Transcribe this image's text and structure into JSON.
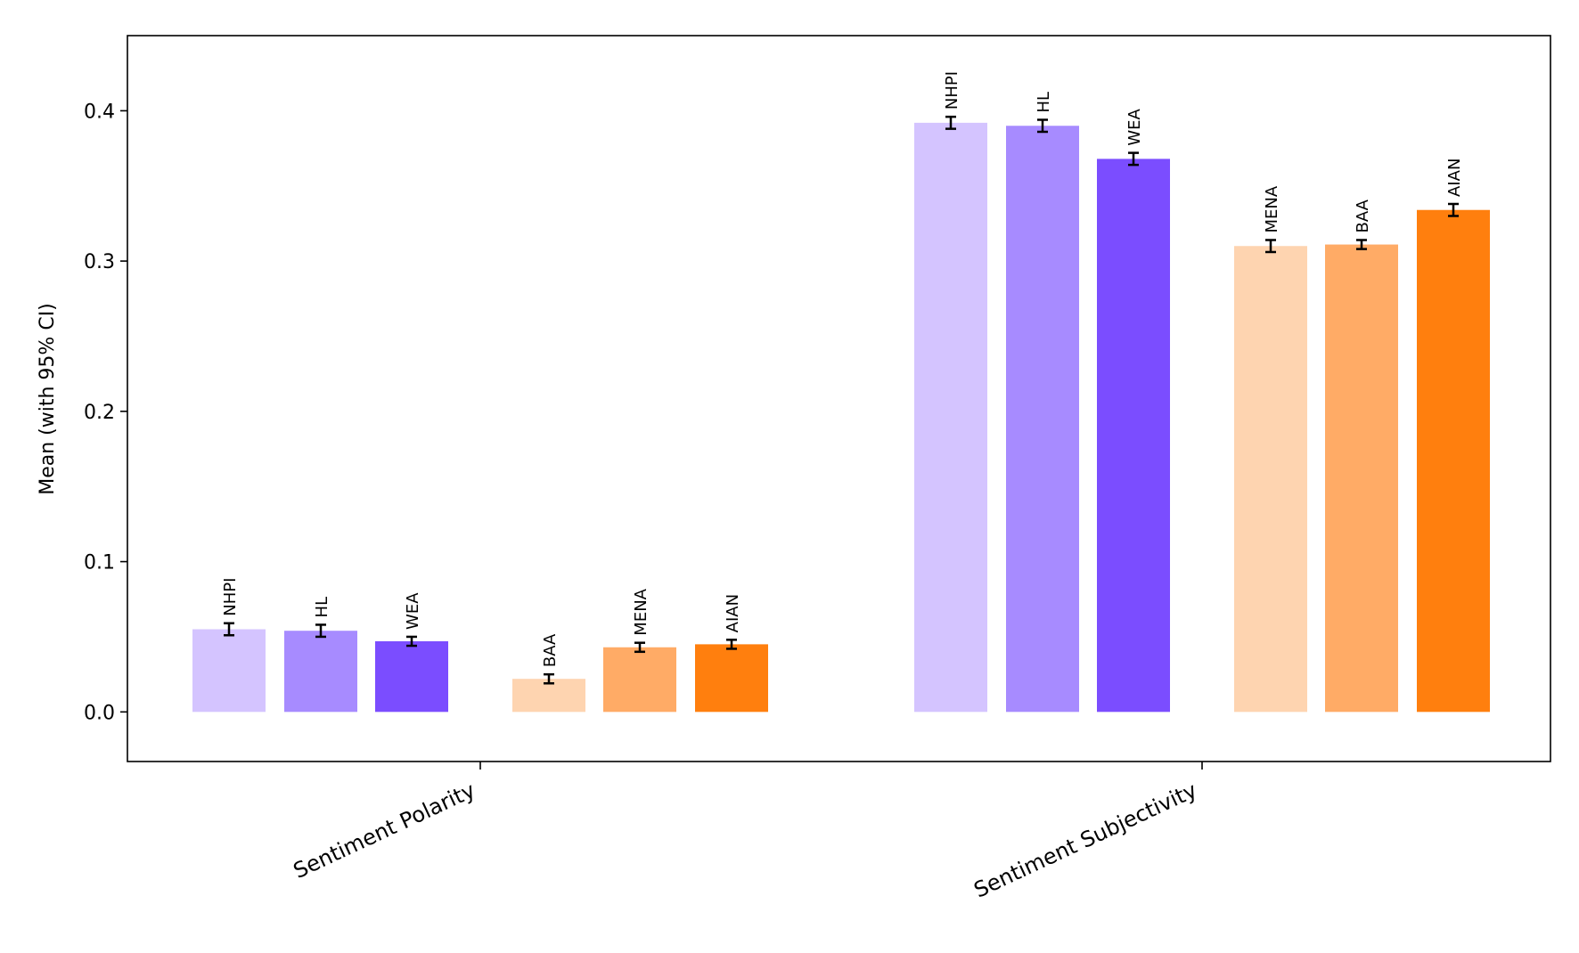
{
  "chart_data": {
    "type": "bar",
    "ylabel": "Mean (with 95% CI)",
    "ylim": [
      -0.033,
      0.45
    ],
    "yticks": [
      "0.0",
      "0.1",
      "0.2",
      "0.3",
      "0.4"
    ],
    "grid": false,
    "categories": [
      "Sentiment Polarity",
      "Sentiment Subjectivity"
    ],
    "groups": [
      {
        "category": "Sentiment Polarity",
        "bars": [
          {
            "label": "NHPI",
            "value": 0.055,
            "ci": 0.004,
            "color": "#d4c4ff"
          },
          {
            "label": "HL",
            "value": 0.054,
            "ci": 0.004,
            "color": "#a78bff"
          },
          {
            "label": "WEA",
            "value": 0.047,
            "ci": 0.003,
            "color": "#7b4dff"
          },
          {
            "label": "BAA",
            "value": 0.022,
            "ci": 0.003,
            "color": "#fed4b0"
          },
          {
            "label": "MENA",
            "value": 0.043,
            "ci": 0.003,
            "color": "#ffab66"
          },
          {
            "label": "AIAN",
            "value": 0.045,
            "ci": 0.003,
            "color": "#ff7f0e"
          }
        ]
      },
      {
        "category": "Sentiment Subjectivity",
        "bars": [
          {
            "label": "NHPI",
            "value": 0.392,
            "ci": 0.004,
            "color": "#d4c4ff"
          },
          {
            "label": "HL",
            "value": 0.39,
            "ci": 0.004,
            "color": "#a78bff"
          },
          {
            "label": "WEA",
            "value": 0.368,
            "ci": 0.004,
            "color": "#7b4dff"
          },
          {
            "label": "MENA",
            "value": 0.31,
            "ci": 0.004,
            "color": "#fed4b0"
          },
          {
            "label": "BAA",
            "value": 0.311,
            "ci": 0.003,
            "color": "#ffab66"
          },
          {
            "label": "AIAN",
            "value": 0.334,
            "ci": 0.004,
            "color": "#ff7f0e"
          }
        ]
      }
    ]
  }
}
